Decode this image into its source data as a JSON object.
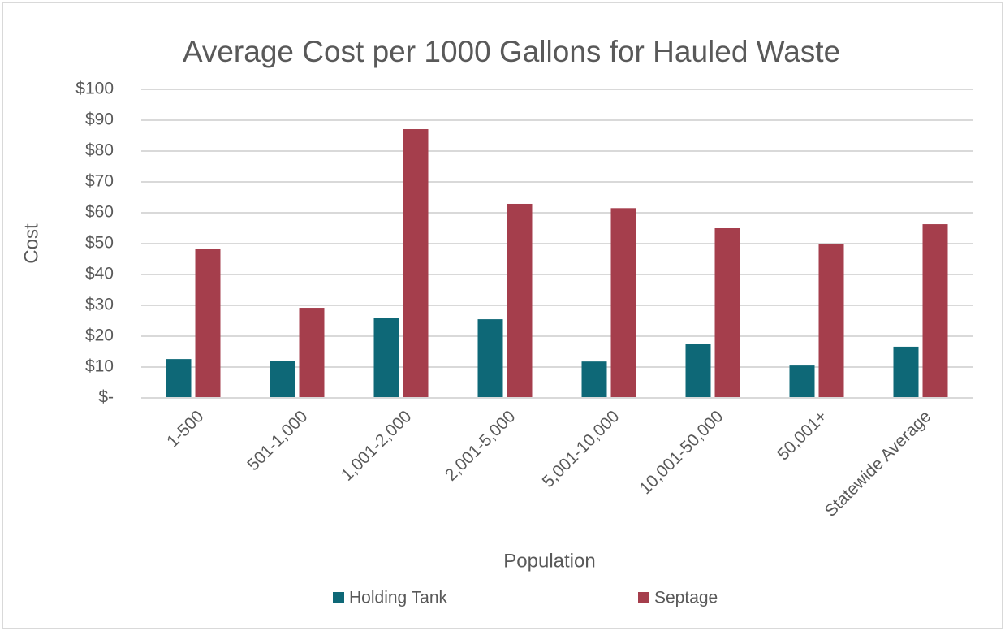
{
  "chart_data": {
    "type": "bar",
    "title": "Average Cost per 1000 Gallons for Hauled Waste",
    "x_label": "Population",
    "y_label": "Cost",
    "categories": [
      "1-500",
      "501-1,000",
      "1,001-2,000",
      "2,001-5,000",
      "5,001-10,000",
      "10,001-50,000",
      "50,001+",
      "Statewide Average"
    ],
    "series": [
      {
        "name": "Holding Tank",
        "color": "#0e6877",
        "values": [
          12.6,
          12.1,
          26,
          25.5,
          11.8,
          17.4,
          10.5,
          16.6
        ]
      },
      {
        "name": "Septage",
        "color": "#a53e4c",
        "values": [
          48.2,
          29.2,
          87.1,
          62.9,
          61.5,
          55,
          50,
          56.3
        ]
      }
    ],
    "ylim": [
      0,
      100
    ],
    "yticks": [
      {
        "value": 0,
        "label": "$-"
      },
      {
        "value": 10,
        "label": "$10"
      },
      {
        "value": 20,
        "label": "$20"
      },
      {
        "value": 30,
        "label": "$30"
      },
      {
        "value": 40,
        "label": "$40"
      },
      {
        "value": 50,
        "label": "$50"
      },
      {
        "value": 60,
        "label": "$60"
      },
      {
        "value": 70,
        "label": "$70"
      },
      {
        "value": 80,
        "label": "$80"
      },
      {
        "value": 90,
        "label": "$90"
      },
      {
        "value": 100,
        "label": "$100"
      }
    ],
    "grid": true,
    "legend": "bottom"
  }
}
